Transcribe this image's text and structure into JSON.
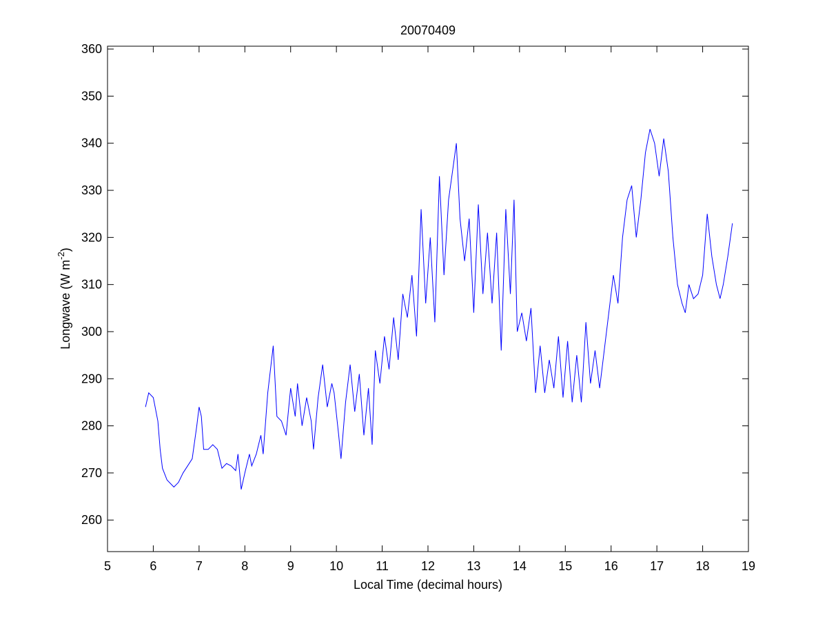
{
  "chart_data": {
    "type": "line",
    "title": "20070409",
    "xlabel": "Local Time (decimal hours)",
    "ylabel": [
      "Longwave (W m",
      "-2",
      ")"
    ],
    "xlim": [
      5,
      19
    ],
    "xticks": [
      5,
      6,
      7,
      8,
      9,
      10,
      11,
      12,
      13,
      14,
      15,
      16,
      17,
      18,
      19
    ],
    "ylim": [
      253.3,
      360.6
    ],
    "yticks": [
      260,
      270,
      280,
      290,
      300,
      310,
      320,
      330,
      340,
      350,
      360
    ],
    "grid": false,
    "series": [
      {
        "name": "Longwave",
        "color": "#0000ff",
        "x": [
          5.83,
          5.9,
          6.0,
          6.1,
          6.15,
          6.2,
          6.3,
          6.45,
          6.55,
          6.65,
          6.75,
          6.85,
          6.95,
          7.0,
          7.05,
          7.1,
          7.2,
          7.3,
          7.4,
          7.5,
          7.6,
          7.7,
          7.8,
          7.85,
          7.92,
          8.0,
          8.1,
          8.15,
          8.25,
          8.35,
          8.4,
          8.5,
          8.62,
          8.7,
          8.8,
          8.9,
          9.0,
          9.1,
          9.15,
          9.25,
          9.35,
          9.45,
          9.5,
          9.6,
          9.7,
          9.8,
          9.9,
          9.95,
          10.05,
          10.1,
          10.2,
          10.3,
          10.4,
          10.5,
          10.6,
          10.7,
          10.78,
          10.85,
          10.95,
          11.05,
          11.15,
          11.25,
          11.35,
          11.45,
          11.55,
          11.65,
          11.75,
          11.85,
          11.95,
          12.05,
          12.15,
          12.25,
          12.35,
          12.45,
          12.55,
          12.62,
          12.7,
          12.8,
          12.9,
          13.0,
          13.1,
          13.2,
          13.3,
          13.4,
          13.5,
          13.6,
          13.7,
          13.8,
          13.88,
          13.95,
          14.05,
          14.15,
          14.25,
          14.35,
          14.45,
          14.55,
          14.65,
          14.75,
          14.85,
          14.95,
          15.05,
          15.15,
          15.25,
          15.35,
          15.45,
          15.55,
          15.65,
          15.75,
          15.85,
          15.95,
          16.05,
          16.15,
          16.25,
          16.35,
          16.45,
          16.55,
          16.65,
          16.75,
          16.85,
          16.95,
          17.05,
          17.15,
          17.25,
          17.35,
          17.45,
          17.55,
          17.62,
          17.7,
          17.8,
          17.9,
          18.0,
          18.1,
          18.2,
          18.3,
          18.38,
          18.45,
          18.55,
          18.65
        ],
        "values": [
          284,
          287,
          286,
          281,
          275,
          271,
          268.5,
          267,
          268,
          270,
          271.5,
          273,
          280,
          284,
          282,
          275,
          275,
          276,
          275,
          271,
          272,
          271.5,
          270.5,
          274,
          266.5,
          270,
          274,
          271.5,
          274,
          278,
          274,
          287,
          297,
          282,
          281,
          278,
          288,
          282,
          289,
          280,
          286,
          281,
          275,
          286,
          293,
          284,
          289,
          287,
          278,
          273,
          285,
          293,
          283,
          291,
          278,
          288,
          276,
          296,
          289,
          299,
          292,
          303,
          294,
          308,
          303,
          312,
          299,
          326,
          306,
          320,
          302,
          333,
          312,
          328,
          335,
          340,
          324,
          315,
          324,
          304,
          327,
          308,
          321,
          306,
          321,
          296,
          326,
          308,
          328,
          300,
          304,
          298,
          305,
          287,
          297,
          287,
          294,
          288,
          299,
          286,
          298,
          285,
          295,
          285,
          302,
          289,
          296,
          288,
          296,
          304,
          312,
          306,
          320,
          328,
          331,
          320,
          328,
          338,
          343,
          340,
          333,
          341,
          334,
          320,
          310,
          306,
          304,
          310,
          307,
          308,
          312,
          325,
          316,
          310,
          307,
          310,
          316,
          323
        ]
      }
    ]
  }
}
